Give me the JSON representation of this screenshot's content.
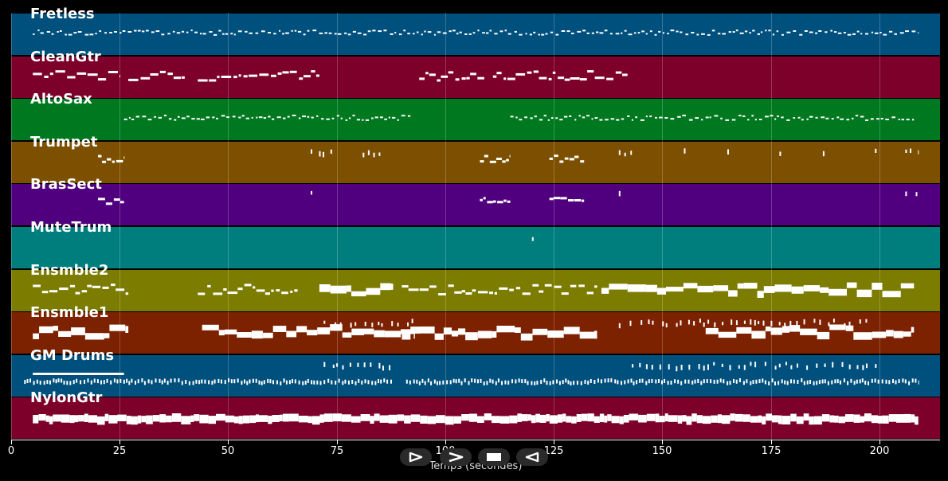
{
  "tracks": [
    {
      "name": "Fretless",
      "color": "#00507e"
    },
    {
      "name": "CleanGtr",
      "color": "#7c002a"
    },
    {
      "name": "AltoSax",
      "color": "#007820"
    },
    {
      "name": "Trumpet",
      "color": "#7c5000"
    },
    {
      "name": "BrasSect",
      "color": "#50007e"
    },
    {
      "name": "MuteTrum",
      "color": "#007e7e"
    },
    {
      "name": "Ensmble2",
      "color": "#7c7c00"
    },
    {
      "name": "Ensmble1",
      "color": "#7c2200"
    },
    {
      "name": "GM Drums",
      "color": "#00507e"
    },
    {
      "name": "NylonGtr",
      "color": "#7c002a"
    }
  ],
  "x_axis": {
    "label": "Temps (secondes)",
    "range": [
      0,
      214
    ],
    "ticks": [
      0,
      25,
      50,
      75,
      100,
      125,
      150,
      175,
      200
    ]
  },
  "transport": {
    "buttons": [
      {
        "name": "play-icon",
        "label": "play"
      },
      {
        "name": "fast-forward-icon",
        "label": "fast-forward"
      },
      {
        "name": "stop-icon",
        "label": "stop"
      },
      {
        "name": "rewind-icon",
        "label": "rewind"
      }
    ]
  },
  "note_color": "#ffffff"
}
